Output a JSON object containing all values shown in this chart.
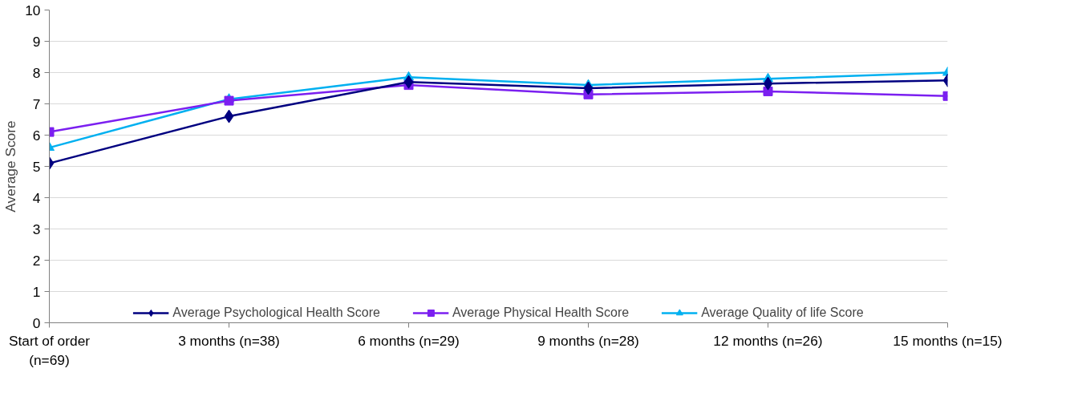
{
  "chart_data": {
    "type": "line",
    "ylabel": "Average Score",
    "categories": [
      "Start of order\n(n=69)",
      "3 months (n=38)",
      "6 months (n=29)",
      "9 months (n=28)",
      "12 months (n=26)",
      "15 months (n=15)"
    ],
    "series": [
      {
        "name": "Average Psychological Health Score",
        "color": "#000080",
        "marker": "diamond",
        "values": [
          5.1,
          6.6,
          7.7,
          7.5,
          7.65,
          7.75
        ]
      },
      {
        "name": "Average Physical Health Score",
        "color": "#7b1ff0",
        "marker": "square",
        "values": [
          6.1,
          7.1,
          7.6,
          7.3,
          7.4,
          7.25
        ]
      },
      {
        "name": "Average Quality of life Score",
        "color": "#00b0f0",
        "marker": "triangle",
        "values": [
          5.6,
          7.15,
          7.85,
          7.6,
          7.8,
          8.0
        ]
      }
    ],
    "ylim": [
      0,
      10
    ],
    "yticks": [
      0,
      1,
      2,
      3,
      4,
      5,
      6,
      7,
      8,
      9,
      10
    ],
    "grid": "y",
    "legend": "bottom"
  }
}
